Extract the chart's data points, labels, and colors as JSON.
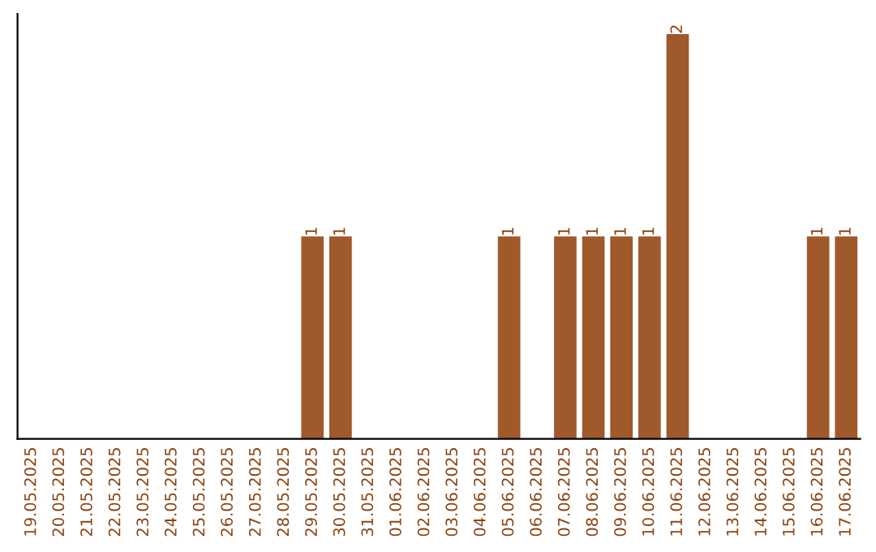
{
  "chart_data": {
    "type": "bar",
    "categories": [
      "19.05.2025",
      "20.05.2025",
      "21.05.2025",
      "22.05.2025",
      "23.05.2025",
      "24.05.2025",
      "25.05.2025",
      "26.05.2025",
      "27.05.2025",
      "28.05.2025",
      "29.05.2025",
      "30.05.2025",
      "31.05.2025",
      "01.06.2025",
      "02.06.2025",
      "03.06.2025",
      "04.06.2025",
      "05.06.2025",
      "06.06.2025",
      "07.06.2025",
      "08.06.2025",
      "09.06.2025",
      "10.06.2025",
      "11.06.2025",
      "12.06.2025",
      "13.06.2025",
      "14.06.2025",
      "15.06.2025",
      "16.06.2025",
      "17.06.2025"
    ],
    "values": [
      0,
      0,
      0,
      0,
      0,
      0,
      0,
      0,
      0,
      0,
      1,
      1,
      0,
      0,
      0,
      0,
      0,
      1,
      0,
      1,
      1,
      1,
      1,
      2,
      0,
      0,
      0,
      0,
      1,
      1
    ],
    "value_labels": [
      null,
      null,
      null,
      null,
      null,
      null,
      null,
      null,
      null,
      null,
      "1",
      "1",
      null,
      null,
      null,
      null,
      null,
      "1",
      null,
      "1",
      "1",
      "1",
      "1",
      "2",
      null,
      null,
      null,
      null,
      "1",
      "1"
    ],
    "color": "#a0592b",
    "tick_labels": "x",
    "grid": false
  }
}
